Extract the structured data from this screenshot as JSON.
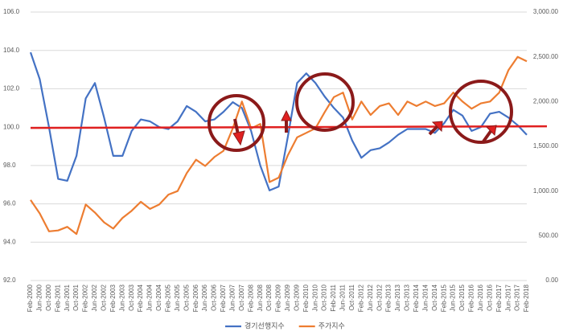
{
  "chart_data": {
    "type": "line",
    "categories": [
      "Feb-2000",
      "Jun-2000",
      "Oct-2000",
      "Feb-2001",
      "Jun-2001",
      "Oct-2001",
      "Feb-2002",
      "Jun-2002",
      "Oct-2002",
      "Feb-2003",
      "Jun-2003",
      "Oct-2003",
      "Feb-2004",
      "Jun-2004",
      "Oct-2004",
      "Feb-2005",
      "Jun-2005",
      "Oct-2005",
      "Feb-2006",
      "Jun-2006",
      "Oct-2006",
      "Feb-2007",
      "Jun-2007",
      "Oct-2007",
      "Feb-2008",
      "Jun-2008",
      "Oct-2008",
      "Feb-2009",
      "Jun-2009",
      "Oct-2009",
      "Feb-2010",
      "Jun-2010",
      "Oct-2010",
      "Feb-2011",
      "Jun-2011",
      "Oct-2011",
      "Feb-2012",
      "Jun-2012",
      "Oct-2012",
      "Feb-2013",
      "Jun-2013",
      "Oct-2013",
      "Feb-2014",
      "Jun-2014",
      "Oct-2014",
      "Feb-2015",
      "Jun-2015",
      "Oct-2015",
      "Feb-2016",
      "Jun-2016",
      "Oct-2016",
      "Feb-2017",
      "Jun-2017",
      "Oct-2017",
      "Feb-2018"
    ],
    "series": [
      {
        "name": "경기선행지수",
        "color": "#4472c4",
        "values": [
          103.9,
          102.5,
          100.0,
          97.3,
          97.2,
          98.5,
          101.5,
          102.3,
          100.5,
          98.5,
          98.5,
          99.8,
          100.4,
          100.3,
          100.0,
          99.9,
          100.3,
          101.1,
          100.8,
          100.3,
          100.4,
          100.8,
          101.3,
          101.0,
          99.8,
          98.0,
          96.7,
          96.9,
          99.5,
          102.3,
          102.8,
          102.3,
          101.6,
          101.0,
          100.5,
          99.3,
          98.4,
          98.8,
          98.9,
          99.2,
          99.6,
          99.9,
          99.9,
          99.9,
          99.7,
          100.2,
          100.9,
          100.6,
          99.8,
          100.0,
          100.7,
          100.8,
          100.5,
          100.1,
          99.6
        ]
      },
      {
        "name": "주가지수",
        "color": "#ed7d31",
        "axis": "y2",
        "values": [
          900,
          750,
          550,
          560,
          600,
          520,
          850,
          760,
          650,
          580,
          700,
          780,
          880,
          800,
          850,
          960,
          1000,
          1200,
          1350,
          1280,
          1380,
          1450,
          1700,
          2000,
          1700,
          1750,
          1100,
          1150,
          1400,
          1600,
          1650,
          1700,
          1880,
          2050,
          2100,
          1800,
          2000,
          1850,
          1950,
          1980,
          1850,
          2000,
          1950,
          2000,
          1950,
          1980,
          2100,
          2000,
          1920,
          1980,
          2000,
          2100,
          2350,
          2500,
          2450
        ]
      }
    ],
    "ylim": [
      92,
      106
    ],
    "yticks": [
      {
        "value": 92,
        "label": "92.0"
      },
      {
        "value": 94,
        "label": "94.0"
      },
      {
        "value": 96,
        "label": "96.0"
      },
      {
        "value": 98,
        "label": "98.0"
      },
      {
        "value": 100,
        "label": "100.0"
      },
      {
        "value": 102,
        "label": "102.0"
      },
      {
        "value": 104,
        "label": "104.0"
      },
      {
        "value": 106,
        "label": "106.0"
      }
    ],
    "y2lim": [
      0,
      3000
    ],
    "y2ticks": [
      {
        "value": 0,
        "label": "0.00"
      },
      {
        "value": 500,
        "label": "500.00"
      },
      {
        "value": 1000,
        "label": "1,000.00"
      },
      {
        "value": 1500,
        "label": "1,500.00"
      },
      {
        "value": 2000,
        "label": "2,000.00"
      },
      {
        "value": 2500,
        "label": "2,500.00"
      },
      {
        "value": 3000,
        "label": "3,000.00"
      }
    ],
    "grid": true,
    "reference_line": {
      "value": 100,
      "color": "#e02020"
    },
    "legend": "bottom"
  }
}
